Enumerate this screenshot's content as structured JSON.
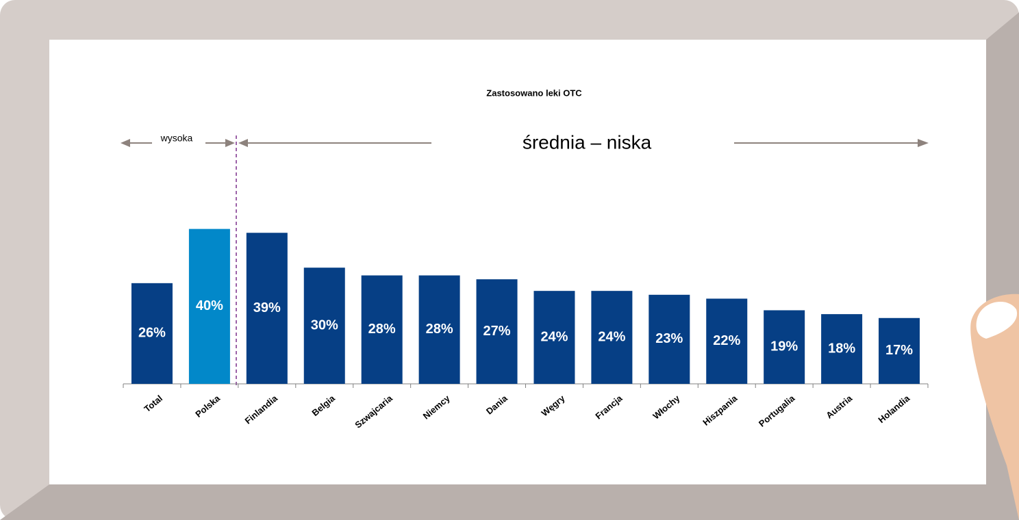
{
  "chart_data": {
    "type": "bar",
    "title": "Zastosowano leki OTC",
    "annotations": [
      "wysoka",
      "średnia – niska"
    ],
    "categories": [
      "Total",
      "Polska",
      "Finlandia",
      "Belgia",
      "Szwajcaria",
      "Niemcy",
      "Dania",
      "Węgry",
      "Francja",
      "Włochy",
      "Hiszpania",
      "Portugalia",
      "Austria",
      "Holandia"
    ],
    "values": [
      26,
      40,
      39,
      30,
      28,
      28,
      27,
      24,
      24,
      23,
      22,
      19,
      18,
      17
    ],
    "value_labels": [
      "26%",
      "40%",
      "39%",
      "30%",
      "28%",
      "28%",
      "27%",
      "24%",
      "24%",
      "23%",
      "22%",
      "19%",
      "18%",
      "17%"
    ],
    "colors": [
      "#063f85",
      "#0288c9",
      "#063f85",
      "#063f85",
      "#063f85",
      "#063f85",
      "#063f85",
      "#063f85",
      "#063f85",
      "#063f85",
      "#063f85",
      "#063f85",
      "#063f85",
      "#063f85"
    ]
  }
}
